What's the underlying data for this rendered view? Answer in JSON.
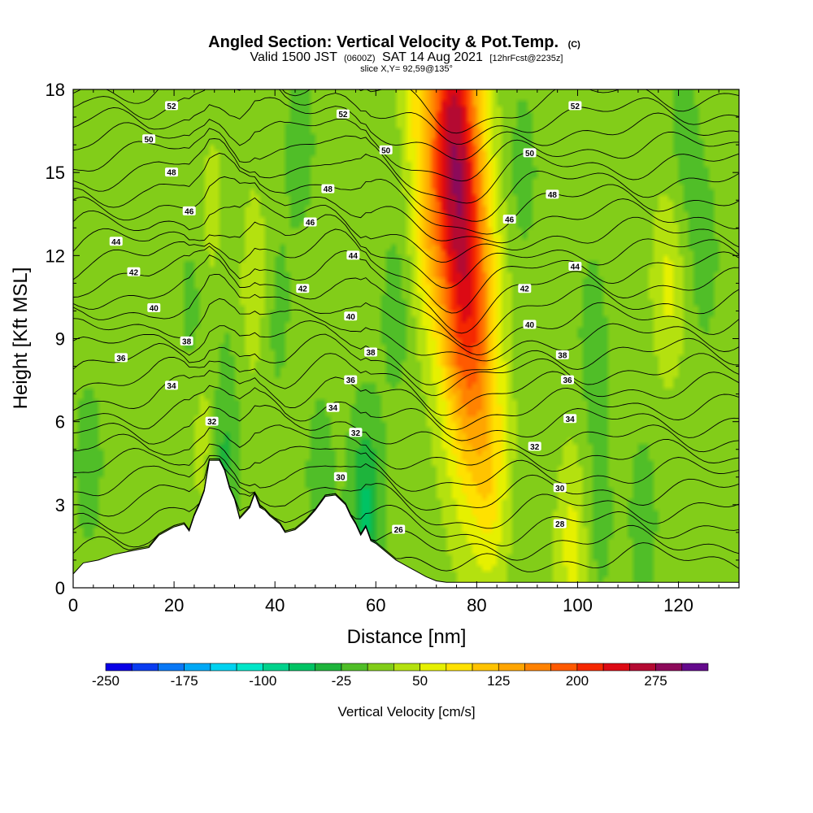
{
  "chart_data": {
    "type": "heatmap",
    "title": "Angled Section: Vertical Velocity & Pot.Temp.",
    "title_unit": "(C)",
    "subtitle_parts": [
      "Valid 1500 JST",
      "(0600Z)",
      "SAT 14 Aug 2021",
      "[12hrFcst@2235z]"
    ],
    "slice_label": "slice X,Y= 92,59@135°",
    "xlabel": "Distance [nm]",
    "ylabel": "Height [Kft MSL]",
    "xlim": [
      0,
      132
    ],
    "ylim": [
      0,
      18
    ],
    "xticks": [
      0,
      20,
      40,
      60,
      80,
      100,
      120
    ],
    "yticks": [
      0,
      3,
      6,
      9,
      12,
      15,
      18
    ],
    "colorbar": {
      "label": "Vertical Velocity [cm/s]",
      "ticks": [
        -250,
        -175,
        -100,
        -25,
        50,
        125,
        200,
        275
      ],
      "levels": [
        -250,
        -225,
        -200,
        -175,
        -150,
        -125,
        -100,
        -75,
        -50,
        -25,
        0,
        25,
        50,
        75,
        100,
        125,
        150,
        175,
        200,
        225,
        250,
        275,
        300
      ],
      "colors": [
        "#0a00e6",
        "#0a3cf0",
        "#0a78f5",
        "#00a8f5",
        "#00d2f0",
        "#00e6c8",
        "#00d28c",
        "#00c364",
        "#1eb43c",
        "#50be28",
        "#82cd19",
        "#b4e10f",
        "#e6f000",
        "#ffe100",
        "#ffc300",
        "#ffa500",
        "#ff8200",
        "#ff5a00",
        "#f52800",
        "#dc0a14",
        "#b40a32",
        "#8c0a5a",
        "#640a8c"
      ]
    },
    "terrain_profile": [
      [
        0,
        0.5
      ],
      [
        2,
        0.9
      ],
      [
        5,
        1.0
      ],
      [
        8,
        1.2
      ],
      [
        12,
        1.35
      ],
      [
        15,
        1.45
      ],
      [
        17,
        1.9
      ],
      [
        20,
        2.2
      ],
      [
        22,
        2.3
      ],
      [
        23,
        2.05
      ],
      [
        24,
        2.6
      ],
      [
        25,
        3.0
      ],
      [
        26,
        3.5
      ],
      [
        27,
        4.6
      ],
      [
        29,
        4.6
      ],
      [
        30,
        4.25
      ],
      [
        31,
        3.6
      ],
      [
        32,
        3.2
      ],
      [
        33,
        2.5
      ],
      [
        35,
        2.9
      ],
      [
        36,
        3.4
      ],
      [
        37,
        2.9
      ],
      [
        38,
        2.8
      ],
      [
        39,
        2.6
      ],
      [
        41,
        2.3
      ],
      [
        42,
        2.0
      ],
      [
        44,
        2.1
      ],
      [
        46,
        2.4
      ],
      [
        48,
        2.8
      ],
      [
        50,
        3.3
      ],
      [
        52,
        3.35
      ],
      [
        54,
        3.0
      ],
      [
        55,
        2.6
      ],
      [
        56,
        2.3
      ],
      [
        57,
        1.9
      ],
      [
        58,
        2.2
      ],
      [
        59,
        1.7
      ],
      [
        60,
        1.6
      ],
      [
        62,
        1.3
      ],
      [
        64,
        1.0
      ],
      [
        66,
        0.8
      ],
      [
        68,
        0.6
      ],
      [
        70,
        0.4
      ],
      [
        72,
        0.25
      ],
      [
        74,
        0.2
      ],
      [
        132,
        0.2
      ]
    ],
    "velocity_features": [
      {
        "x": 75,
        "y": 17.5,
        "value": 210
      },
      {
        "x": 77,
        "y": 12,
        "value": 150
      },
      {
        "x": 80,
        "y": 8,
        "value": 110
      },
      {
        "x": 70,
        "y": 13,
        "value": 55
      },
      {
        "x": 68,
        "y": 18,
        "value": 45
      },
      {
        "x": 28,
        "y": 13,
        "value": 40
      },
      {
        "x": 36,
        "y": 11,
        "value": 40
      },
      {
        "x": 27,
        "y": 5.5,
        "value": 60
      },
      {
        "x": 118,
        "y": 11,
        "value": 50
      },
      {
        "x": 99,
        "y": 1.5,
        "value": 55
      },
      {
        "x": 83,
        "y": 3.5,
        "value": 45
      },
      {
        "x": 24,
        "y": 10,
        "value": -25
      },
      {
        "x": 30,
        "y": 12,
        "value": -25
      },
      {
        "x": 40,
        "y": 10,
        "value": -25
      },
      {
        "x": 64,
        "y": 10,
        "value": -25
      },
      {
        "x": 89,
        "y": 15,
        "value": -25
      },
      {
        "x": 103,
        "y": 9,
        "value": -25
      },
      {
        "x": 104,
        "y": 2.5,
        "value": -25
      },
      {
        "x": 125,
        "y": 12,
        "value": -25
      },
      {
        "x": 3,
        "y": 4.5,
        "value": -25
      },
      {
        "x": 58,
        "y": 2.8,
        "value": -75
      },
      {
        "x": 29,
        "y": 5,
        "value": -75
      },
      {
        "x": 113,
        "y": 2.5,
        "value": -25
      },
      {
        "x": 49,
        "y": 4,
        "value": -25
      },
      {
        "x": 45,
        "y": 16,
        "value": -25
      },
      {
        "x": 121,
        "y": 16,
        "value": -25
      }
    ],
    "contour_levels": [
      26,
      27,
      28,
      29,
      30,
      31,
      32,
      33,
      34,
      35,
      36,
      37,
      38,
      39,
      40,
      41,
      42,
      43,
      44,
      45,
      46,
      47,
      48,
      49,
      50,
      51,
      52,
      53
    ],
    "contour_labels": [
      {
        "text": "52",
        "x": 19.5,
        "y": 17.4
      },
      {
        "text": "52",
        "x": 53.5,
        "y": 17.1
      },
      {
        "text": "52",
        "x": 99.5,
        "y": 17.4
      },
      {
        "text": "50",
        "x": 15,
        "y": 16.2
      },
      {
        "text": "50",
        "x": 62,
        "y": 15.8
      },
      {
        "text": "50",
        "x": 90.5,
        "y": 15.7
      },
      {
        "text": "48",
        "x": 19.5,
        "y": 15
      },
      {
        "text": "48",
        "x": 50.5,
        "y": 14.4
      },
      {
        "text": "48",
        "x": 95,
        "y": 14.2
      },
      {
        "text": "46",
        "x": 23,
        "y": 13.6
      },
      {
        "text": "46",
        "x": 47,
        "y": 13.2
      },
      {
        "text": "46",
        "x": 86.5,
        "y": 13.3
      },
      {
        "text": "44",
        "x": 8.5,
        "y": 12.5
      },
      {
        "text": "44",
        "x": 55.5,
        "y": 12
      },
      {
        "text": "44",
        "x": 99.5,
        "y": 11.6
      },
      {
        "text": "42",
        "x": 12,
        "y": 11.4
      },
      {
        "text": "42",
        "x": 45.5,
        "y": 10.8
      },
      {
        "text": "42",
        "x": 89.5,
        "y": 10.8
      },
      {
        "text": "40",
        "x": 16,
        "y": 10.1
      },
      {
        "text": "40",
        "x": 55,
        "y": 9.8
      },
      {
        "text": "40",
        "x": 90.5,
        "y": 9.5
      },
      {
        "text": "38",
        "x": 22.5,
        "y": 8.9
      },
      {
        "text": "38",
        "x": 59,
        "y": 8.5
      },
      {
        "text": "38",
        "x": 97,
        "y": 8.4
      },
      {
        "text": "36",
        "x": 9.5,
        "y": 8.3
      },
      {
        "text": "36",
        "x": 55,
        "y": 7.5
      },
      {
        "text": "36",
        "x": 98,
        "y": 7.5
      },
      {
        "text": "34",
        "x": 19.5,
        "y": 7.3
      },
      {
        "text": "34",
        "x": 51.5,
        "y": 6.5
      },
      {
        "text": "34",
        "x": 98.5,
        "y": 6.1
      },
      {
        "text": "32",
        "x": 27.5,
        "y": 6
      },
      {
        "text": "32",
        "x": 56,
        "y": 5.6
      },
      {
        "text": "32",
        "x": 91.5,
        "y": 5.1
      },
      {
        "text": "30",
        "x": 53,
        "y": 4
      },
      {
        "text": "30",
        "x": 96.5,
        "y": 3.6
      },
      {
        "text": "28",
        "x": 96.5,
        "y": 2.3
      },
      {
        "text": "26",
        "x": 64.5,
        "y": 2.1
      }
    ]
  }
}
